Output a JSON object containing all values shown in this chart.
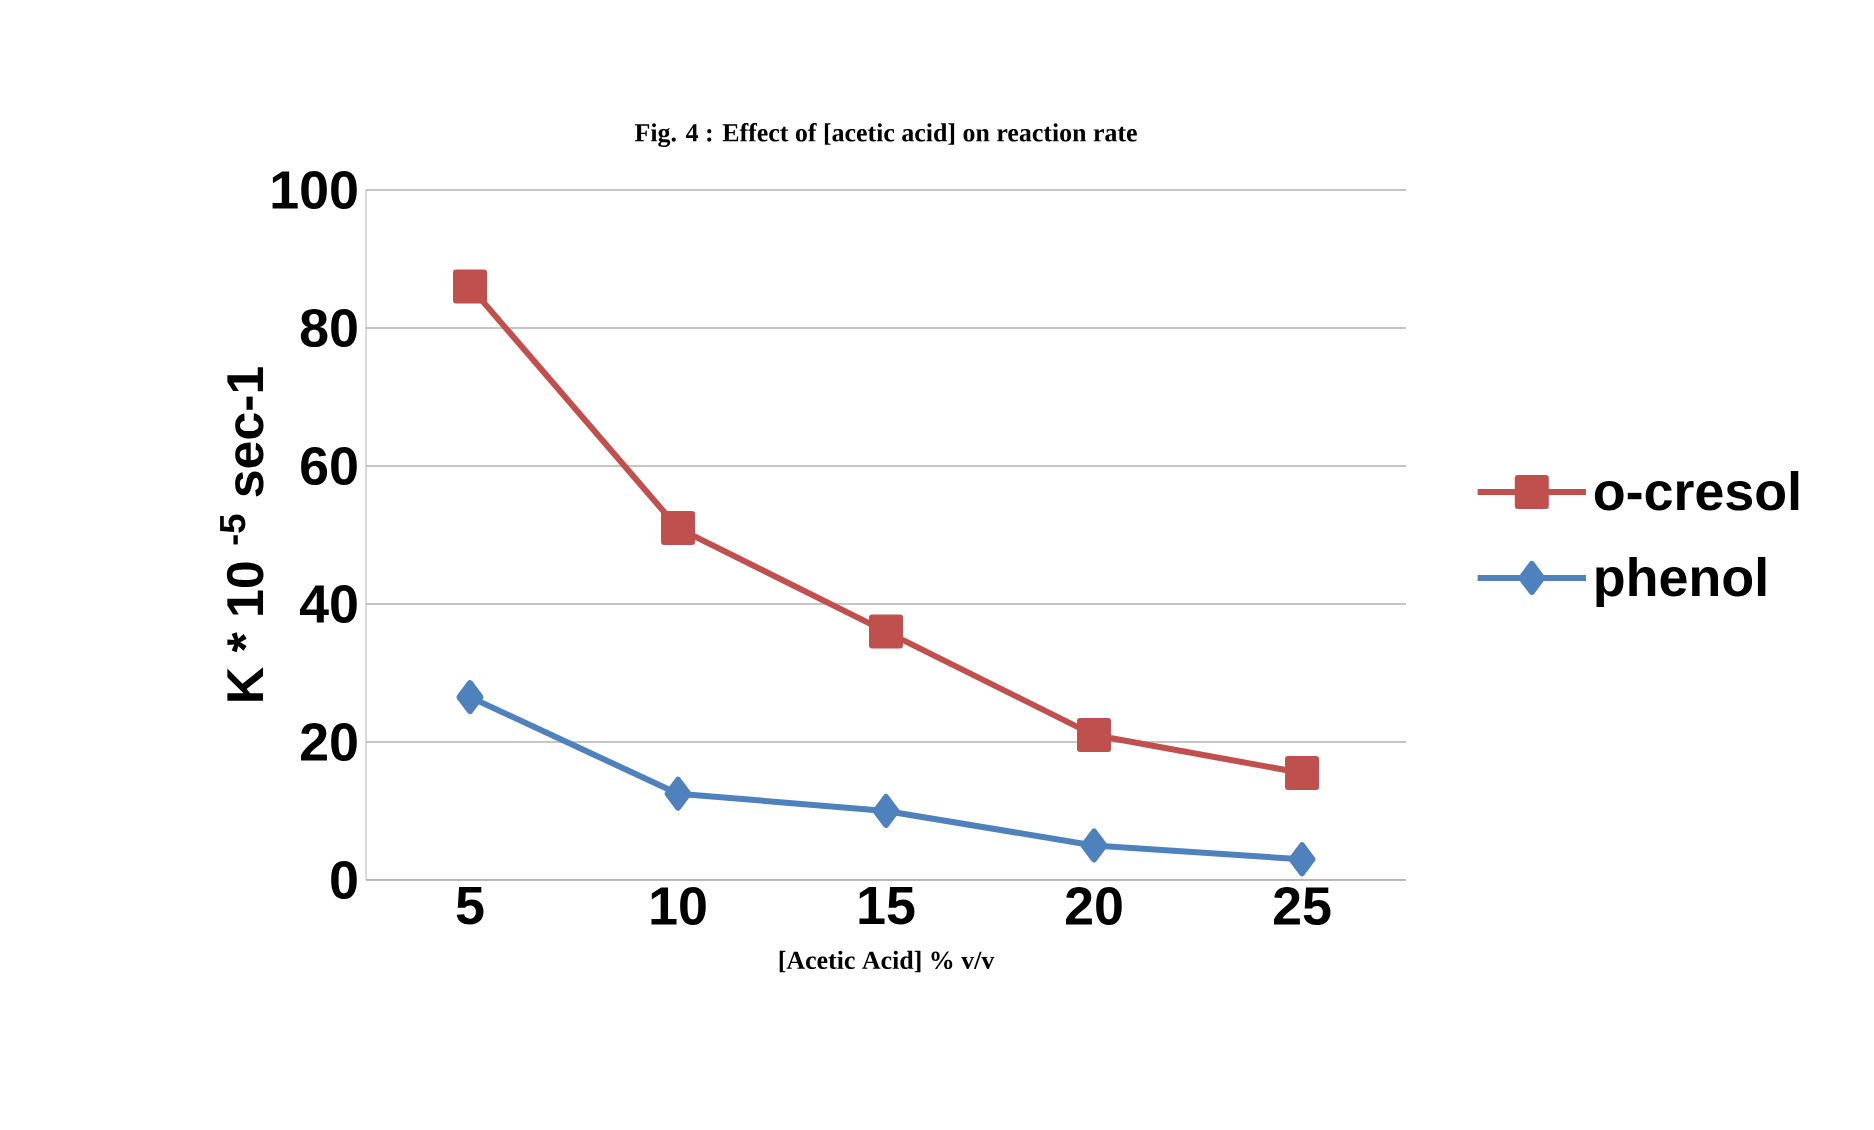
{
  "chart_data": {
    "type": "line",
    "title": "Fig. 4 : Effect of [acetic acid] on reaction rate",
    "xlabel": "[Acetic Acid] % v/v",
    "ylabel": "K * 10 $^{-5}$ sec-1",
    "categories": [
      "5",
      "10",
      "15",
      "20",
      "25"
    ],
    "series": [
      {
        "name": "o-cresol",
        "color": "#c0504d",
        "marker": "square",
        "values": [
          86,
          51,
          36,
          21,
          15.5
        ]
      },
      {
        "name": "phenol",
        "color": "#4f81bd",
        "marker": "diamond",
        "values": [
          26.5,
          12.5,
          10,
          5,
          3
        ]
      }
    ],
    "ylim": [
      0,
      100
    ],
    "yticks": [
      0,
      20,
      40,
      60,
      80,
      100
    ],
    "grid": "y",
    "legend": "right"
  }
}
